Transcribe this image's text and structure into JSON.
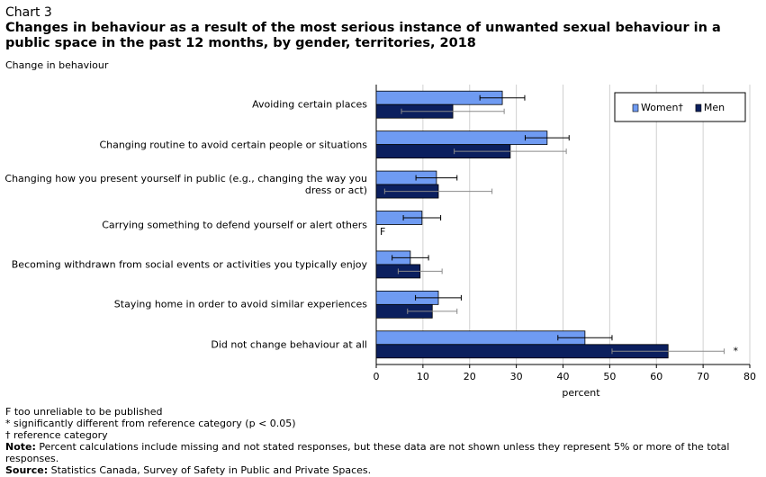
{
  "chart_data": {
    "type": "bar",
    "orientation": "horizontal",
    "label": "Chart 3",
    "title": "Changes in behaviour as a result of the most serious instance of unwanted sexual behaviour in a public space in the past 12 months, by gender, territories, 2018",
    "y_axis_title": "Change in behaviour",
    "x_axis_title": "percent",
    "categories": [
      "Avoiding certain places",
      "Changing routine to avoid certain people or situations",
      "Changing how you present yourself in public (e.g., changing the way you dress or act)",
      "Carrying something to defend yourself or alert others",
      "Becoming withdrawn from social events or activities you typically enjoy",
      "Staying home in order to avoid similar experiences",
      "Did not change behaviour at all"
    ],
    "series": [
      {
        "name": "Women†",
        "color": "#6f9bf2",
        "error_color": "#000000",
        "values": [
          27,
          36.6,
          12.9,
          9.8,
          7.3,
          13.3,
          44.7
        ],
        "errors": [
          4.8,
          4.7,
          4.4,
          4,
          3.9,
          4.9,
          5.8
        ]
      },
      {
        "name": "Men",
        "color": "#0b1f5e",
        "error_color": "#8a8a8a",
        "values": [
          16.4,
          28.7,
          13.3,
          null,
          9.4,
          12,
          62.5
        ],
        "errors": [
          11,
          12,
          11.5,
          null,
          4.7,
          5.3,
          12
        ],
        "value_labels": [
          null,
          null,
          null,
          "F",
          null,
          null,
          null
        ],
        "significance": [
          null,
          null,
          null,
          null,
          null,
          null,
          "*"
        ]
      }
    ],
    "xlim": [
      0,
      80
    ],
    "xticks": [
      0,
      10,
      20,
      30,
      40,
      50,
      60,
      70,
      80
    ],
    "grid": true,
    "legend": "top-right",
    "footnotes": [
      "F too unreliable to be published",
      "* significantly different from reference category (p < 0.05)",
      "† reference category"
    ],
    "note": {
      "label": "Note:",
      "text": "Percent calculations include missing and not stated responses, but these data are not shown unless they represent 5% or more of the total responses."
    },
    "source": {
      "label": "Source:",
      "text": "Statistics Canada, Survey of Safety in Public and Private Spaces."
    }
  }
}
